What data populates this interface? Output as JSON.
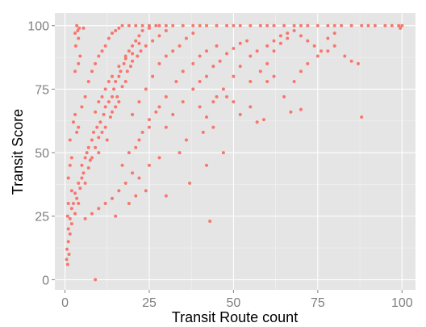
{
  "chart_data": {
    "type": "scatter",
    "title": "",
    "xlabel": "Transit Route count",
    "ylabel": "Transit Score",
    "xlim": [
      -3,
      104
    ],
    "ylim": [
      -4,
      105
    ],
    "x_ticks": [
      0,
      25,
      50,
      75,
      100
    ],
    "y_ticks": [
      0,
      25,
      50,
      75,
      100
    ],
    "x_tick_labels": [
      "0",
      "25",
      "50",
      "75",
      "100"
    ],
    "y_tick_labels": [
      "0",
      "25",
      "50",
      "75",
      "100"
    ],
    "grid": true,
    "legend": "none",
    "colors": {
      "point": "#f8766d",
      "panel": "#e5e5e5",
      "grid_major": "#ffffff",
      "grid_minor": "#f2f2f2"
    },
    "series": [
      {
        "points": [
          [
            0.5,
            8
          ],
          [
            0.6,
            12
          ],
          [
            0.8,
            6
          ],
          [
            1,
            15
          ],
          [
            1,
            20
          ],
          [
            1.2,
            10
          ],
          [
            1.5,
            18
          ],
          [
            1.5,
            24
          ],
          [
            2,
            28
          ],
          [
            2,
            22
          ],
          [
            2.5,
            30
          ],
          [
            3,
            26
          ],
          [
            3,
            34
          ],
          [
            3.5,
            32
          ],
          [
            4,
            38
          ],
          [
            4,
            30
          ],
          [
            4.5,
            36
          ],
          [
            5,
            40
          ],
          [
            5,
            45
          ],
          [
            5.5,
            42
          ],
          [
            6,
            48
          ],
          [
            6,
            38
          ],
          [
            6.5,
            50
          ],
          [
            7,
            44
          ],
          [
            7,
            52
          ],
          [
            7.5,
            47
          ],
          [
            8,
            55
          ],
          [
            8,
            48
          ],
          [
            8.5,
            58
          ],
          [
            9,
            52
          ],
          [
            9.5,
            60
          ],
          [
            10,
            56
          ],
          [
            10,
            50
          ],
          [
            10.5,
            62
          ],
          [
            11,
            58
          ],
          [
            11.5,
            65
          ],
          [
            12,
            60
          ],
          [
            12,
            68
          ],
          [
            12.5,
            55
          ],
          [
            13,
            70
          ],
          [
            13.5,
            64
          ],
          [
            14,
            72
          ],
          [
            14,
            66
          ],
          [
            14.5,
            75
          ],
          [
            15,
            68
          ],
          [
            15,
            78
          ],
          [
            15.5,
            72
          ],
          [
            16,
            80
          ],
          [
            16,
            70
          ],
          [
            16.5,
            82
          ],
          [
            17,
            76
          ],
          [
            17.5,
            85
          ],
          [
            18,
            78
          ],
          [
            18,
            88
          ],
          [
            18.5,
            82
          ],
          [
            19,
            90
          ],
          [
            19.5,
            84
          ],
          [
            20,
            92
          ],
          [
            20,
            86
          ],
          [
            21,
            94
          ],
          [
            21.5,
            88
          ],
          [
            22,
            96
          ],
          [
            22.5,
            90
          ],
          [
            23,
            98
          ],
          [
            24,
            92
          ],
          [
            25,
            99
          ],
          [
            26,
            94
          ],
          [
            27,
            100
          ],
          [
            28,
            96
          ],
          [
            30,
            98
          ],
          [
            1,
            40
          ],
          [
            1.5,
            55
          ],
          [
            2,
            48
          ],
          [
            2.5,
            62
          ],
          [
            3,
            65
          ],
          [
            3.5,
            58
          ],
          [
            2,
            35
          ],
          [
            1.5,
            45
          ],
          [
            1,
            30
          ],
          [
            0.8,
            25
          ],
          [
            4,
            60
          ],
          [
            5,
            68
          ],
          [
            6,
            72
          ],
          [
            7,
            78
          ],
          [
            8,
            82
          ],
          [
            9,
            85
          ],
          [
            10,
            88
          ],
          [
            11,
            90
          ],
          [
            12,
            92
          ],
          [
            13,
            95
          ],
          [
            14,
            97
          ],
          [
            15,
            98
          ],
          [
            16,
            99
          ],
          [
            17,
            100
          ],
          [
            19,
            100
          ],
          [
            21,
            100
          ],
          [
            23,
            100
          ],
          [
            25,
            100
          ],
          [
            28,
            100
          ],
          [
            30,
            100
          ],
          [
            32,
            100
          ],
          [
            35,
            100
          ],
          [
            38,
            100
          ],
          [
            40,
            100
          ],
          [
            42,
            100
          ],
          [
            45,
            100
          ],
          [
            48,
            100
          ],
          [
            50,
            100
          ],
          [
            52,
            100
          ],
          [
            55,
            100
          ],
          [
            58,
            100
          ],
          [
            60,
            100
          ],
          [
            62,
            100
          ],
          [
            65,
            100
          ],
          [
            68,
            100
          ],
          [
            70,
            100
          ],
          [
            72,
            100
          ],
          [
            75,
            100
          ],
          [
            78,
            100
          ],
          [
            80,
            100
          ],
          [
            82,
            100
          ],
          [
            85,
            100
          ],
          [
            88,
            100
          ],
          [
            90,
            100
          ],
          [
            92,
            100
          ],
          [
            95,
            100
          ],
          [
            97,
            100
          ],
          [
            99,
            100
          ],
          [
            100,
            100
          ],
          [
            99.5,
            99
          ],
          [
            3,
            97
          ],
          [
            3.5,
            100
          ],
          [
            4,
            95
          ],
          [
            3.2,
            92
          ],
          [
            4.2,
            99
          ],
          [
            3.8,
            98
          ],
          [
            5.5,
            99
          ],
          [
            4.5,
            88
          ],
          [
            3,
            82
          ],
          [
            4,
            85
          ],
          [
            20,
            65
          ],
          [
            22,
            70
          ],
          [
            24,
            75
          ],
          [
            26,
            80
          ],
          [
            28,
            85
          ],
          [
            30,
            88
          ],
          [
            32,
            90
          ],
          [
            34,
            92
          ],
          [
            36,
            95
          ],
          [
            38,
            97
          ],
          [
            22,
            55
          ],
          [
            25,
            60
          ],
          [
            28,
            68
          ],
          [
            30,
            72
          ],
          [
            33,
            78
          ],
          [
            35,
            82
          ],
          [
            38,
            85
          ],
          [
            40,
            88
          ],
          [
            42,
            90
          ],
          [
            45,
            92
          ],
          [
            40,
            78
          ],
          [
            42,
            80
          ],
          [
            44,
            84
          ],
          [
            46,
            86
          ],
          [
            48,
            89
          ],
          [
            50,
            91
          ],
          [
            52,
            93
          ],
          [
            54,
            94
          ],
          [
            45,
            72
          ],
          [
            47,
            75
          ],
          [
            50,
            80
          ],
          [
            52,
            84
          ],
          [
            55,
            88
          ],
          [
            57,
            90
          ],
          [
            60,
            92
          ],
          [
            62,
            94
          ],
          [
            64,
            96
          ],
          [
            66,
            97
          ],
          [
            55,
            78
          ],
          [
            58,
            82
          ],
          [
            30,
            60
          ],
          [
            32,
            65
          ],
          [
            35,
            70
          ],
          [
            38,
            75
          ],
          [
            40,
            68
          ],
          [
            42,
            64
          ],
          [
            44,
            70
          ],
          [
            36,
            55
          ],
          [
            34,
            50
          ],
          [
            28,
            48
          ],
          [
            25,
            45
          ],
          [
            22,
            40
          ],
          [
            20,
            42
          ],
          [
            18,
            38
          ],
          [
            16,
            35
          ],
          [
            14,
            32
          ],
          [
            12,
            30
          ],
          [
            10,
            28
          ],
          [
            8,
            26
          ],
          [
            6,
            24
          ],
          [
            24,
            35
          ],
          [
            30,
            33
          ],
          [
            37,
            38
          ],
          [
            43,
            23
          ],
          [
            42,
            45
          ],
          [
            47,
            50
          ],
          [
            41,
            58
          ],
          [
            44,
            60
          ],
          [
            57,
            62
          ],
          [
            59,
            63
          ],
          [
            52,
            65
          ],
          [
            55,
            68
          ],
          [
            50,
            70
          ],
          [
            48,
            72
          ],
          [
            60,
            78
          ],
          [
            62,
            80
          ],
          [
            65,
            72
          ],
          [
            68,
            78
          ],
          [
            70,
            82
          ],
          [
            67,
            66
          ],
          [
            70,
            67
          ],
          [
            72,
            85
          ],
          [
            75,
            88
          ],
          [
            78,
            90
          ],
          [
            80,
            92
          ],
          [
            83,
            88
          ],
          [
            85,
            86
          ],
          [
            88,
            64
          ],
          [
            87,
            85
          ],
          [
            60,
            85
          ],
          [
            62,
            90
          ],
          [
            64,
            93
          ],
          [
            66,
            95
          ],
          [
            68,
            98
          ],
          [
            70,
            96
          ],
          [
            72,
            94
          ],
          [
            74,
            92
          ],
          [
            76,
            90
          ],
          [
            78,
            95
          ],
          [
            80,
            97
          ],
          [
            9,
            0
          ],
          [
            15,
            25
          ],
          [
            19,
            30
          ],
          [
            21,
            33
          ],
          [
            17,
            45
          ],
          [
            19,
            50
          ],
          [
            21,
            52
          ],
          [
            23,
            58
          ],
          [
            25,
            63
          ],
          [
            27,
            66
          ],
          [
            10,
            70
          ],
          [
            12,
            75
          ],
          [
            14,
            80
          ],
          [
            16,
            84
          ],
          [
            18,
            87
          ],
          [
            20,
            89
          ],
          [
            22,
            93
          ],
          [
            9,
            66
          ],
          [
            11,
            72
          ],
          [
            13,
            78
          ]
        ]
      }
    ]
  }
}
